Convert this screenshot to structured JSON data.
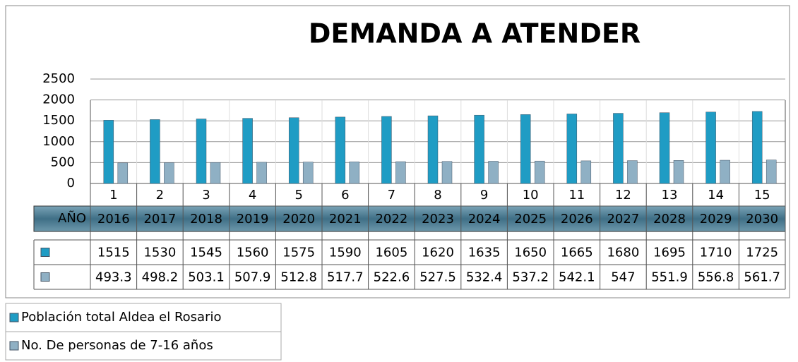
{
  "chart_data": {
    "type": "bar",
    "title": "DEMANDA A ATENDER",
    "categories": [
      1,
      2,
      3,
      4,
      5,
      6,
      7,
      8,
      9,
      10,
      11,
      12,
      13,
      14,
      15
    ],
    "year_label": "AÑO",
    "years": [
      2016,
      2017,
      2018,
      2019,
      2020,
      2021,
      2022,
      2023,
      2024,
      2025,
      2026,
      2027,
      2028,
      2029,
      2030
    ],
    "series": [
      {
        "name": "Población total Aldea el Rosario",
        "color": "#1f9cc4",
        "values": [
          1515,
          1530,
          1545,
          1560,
          1575,
          1590,
          1605,
          1620,
          1635,
          1650,
          1665,
          1680,
          1695,
          1710,
          1725
        ]
      },
      {
        "name": "No. De personas de 7-16 años",
        "color": "#8fb0c4",
        "values": [
          493.3,
          498.2,
          503.1,
          507.9,
          512.8,
          517.7,
          522.6,
          527.5,
          532.4,
          537.2,
          542.1,
          547,
          551.9,
          556.8,
          561.7
        ]
      }
    ],
    "ylim": [
      0,
      2500
    ],
    "yticks": [
      0,
      500,
      1000,
      1500,
      2000,
      2500
    ],
    "grid": true
  }
}
